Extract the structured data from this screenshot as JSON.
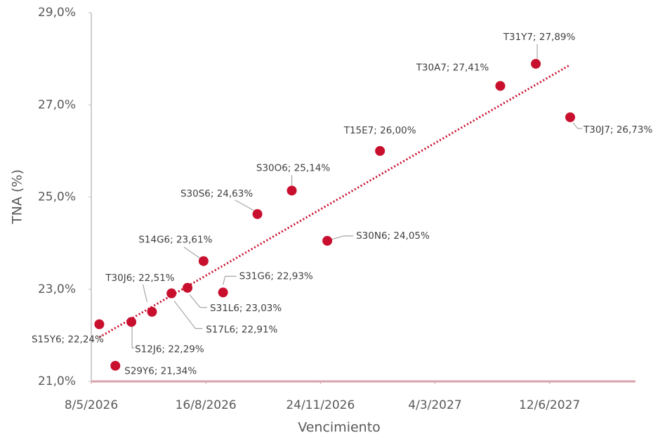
{
  "chart_data": {
    "type": "scatter",
    "x_label": "Vencimiento",
    "y_label": "TNA (%)",
    "x": [
      "2026-05-15",
      "2026-05-29",
      "2026-06-12",
      "2026-06-30",
      "2026-07-17",
      "2026-07-31",
      "2026-08-14",
      "2026-08-31",
      "2026-09-30",
      "2026-10-30",
      "2026-11-30",
      "2027-01-15",
      "2027-04-30",
      "2027-05-31",
      "2027-06-30"
    ],
    "series": [
      {
        "color": "#c8102e",
        "values": [
          22.24,
          21.34,
          22.29,
          22.51,
          22.91,
          23.03,
          23.61,
          22.93,
          24.63,
          25.14,
          24.05,
          26.0,
          27.41,
          27.89,
          26.73
        ],
        "value_labels": [
          "S15Y6; 22,24%",
          "S29Y6; 21,34%",
          "S12J6; 22,29%",
          "T30J6; 22,51%",
          "S17L6; 22,91%",
          "S31L6; 23,03%",
          "S14G6; 23,61%",
          "S31G6; 22,93%",
          "S30S6; 24,63%",
          "S30O6; 25,14%",
          "S30N6; 24,05%",
          "T15E7; 26,00%",
          "T30A7; 27,41%",
          "T31Y7; 27,89%",
          "T30J7; 26,73%"
        ]
      }
    ],
    "trendline": {
      "type": "linear",
      "color": "#c8102e"
    },
    "xlim": [
      "2026-05-08",
      "2027-08-26"
    ],
    "xticks": [
      {
        "value": "2026-05-08",
        "label": "8/5/2026"
      },
      {
        "value": "2026-08-16",
        "label": "16/8/2026"
      },
      {
        "value": "2026-11-24",
        "label": "24/11/2026"
      },
      {
        "value": "2027-03-04",
        "label": "4/3/2027"
      },
      {
        "value": "2027-06-12",
        "label": "12/6/2027"
      }
    ],
    "ylim": [
      21,
      29
    ],
    "yticks": [
      {
        "value": 21,
        "label": "21,0%"
      },
      {
        "value": 23,
        "label": "23,0%"
      },
      {
        "value": 25,
        "label": "25,0%"
      },
      {
        "value": 27,
        "label": "27,0%"
      },
      {
        "value": 29,
        "label": "29,0%"
      }
    ],
    "grid": false
  }
}
